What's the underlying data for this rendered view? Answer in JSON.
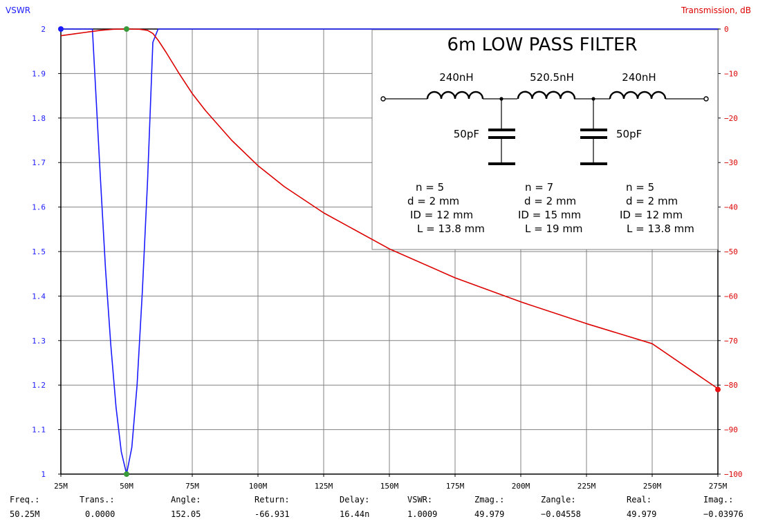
{
  "chart_data": {
    "type": "line",
    "title": "",
    "xlabel": "",
    "xlim": [
      25,
      275
    ],
    "x_ticks": [
      "25M",
      "50M",
      "75M",
      "100M",
      "125M",
      "150M",
      "175M",
      "200M",
      "225M",
      "250M",
      "275M"
    ],
    "ylabel_left": "VSWR",
    "ylim_left": [
      1,
      2
    ],
    "y_ticks_left": [
      "1",
      "1.1",
      "1.2",
      "1.3",
      "1.4",
      "1.5",
      "1.6",
      "1.7",
      "1.8",
      "1.9",
      "2"
    ],
    "ylabel_right": "Transmission, dB",
    "ylim_right": [
      -100,
      0
    ],
    "y_ticks_right": [
      "0",
      "−10",
      "−20",
      "−30",
      "−40",
      "−50",
      "−60",
      "−70",
      "−80",
      "−90",
      "−100"
    ],
    "grid": true,
    "series": [
      {
        "axis": "left",
        "color": "#1a1aff",
        "x": [
          25,
          37,
          40,
          42,
          44,
          46,
          48,
          50,
          52,
          54,
          56,
          58,
          60,
          62,
          275
        ],
        "y": [
          2,
          2,
          1.67,
          1.46,
          1.29,
          1.15,
          1.05,
          1.0,
          1.06,
          1.2,
          1.41,
          1.66,
          1.97,
          2,
          2
        ]
      },
      {
        "axis": "right",
        "color": "#dd0000",
        "x": [
          25,
          30,
          35,
          40,
          45,
          50,
          55,
          58,
          60,
          62,
          65,
          70,
          75,
          80,
          90,
          100,
          110,
          125,
          150,
          175,
          200,
          225,
          250,
          275
        ],
        "y": [
          -1.5,
          -1.1,
          -0.7,
          -0.3,
          -0.05,
          0,
          -0.05,
          -0.3,
          -1.0,
          -2.5,
          -5.2,
          -10,
          -14.5,
          -18.3,
          -25,
          -30.7,
          -35.4,
          -41.3,
          -49.4,
          -55.9,
          -61.3,
          -66.2,
          -70.7,
          -80.8
        ]
      }
    ],
    "markers": [
      {
        "axis": "left",
        "x": 25,
        "y": 2,
        "color": "#1a1aff"
      },
      {
        "axis": "left",
        "x": 50,
        "y": 2,
        "color": "#3a9a3a"
      },
      {
        "axis": "left",
        "x": 50,
        "y": 1,
        "color": "#3a9a3a"
      },
      {
        "axis": "right",
        "x": 275,
        "y": -81,
        "color": "#ee1111"
      }
    ]
  },
  "inset": {
    "title": "6m LOW PASS FILTER",
    "inductors": [
      {
        "label": "240nH",
        "n": "n = 5",
        "d": "d = 2 mm",
        "id": "ID = 12 mm",
        "l": "L = 13.8 mm"
      },
      {
        "label": "520.5nH",
        "n": "n = 7",
        "d": "d = 2 mm",
        "id": "ID = 15 mm",
        "l": "L = 19 mm"
      },
      {
        "label": "240nH",
        "n": "n = 5",
        "d": "d = 2 mm",
        "id": "ID = 12 mm",
        "l": "L = 13.8 mm"
      }
    ],
    "capacitors": [
      "50pF",
      "50pF"
    ]
  },
  "readout": [
    {
      "label": "Freq.:",
      "value": "50.25M"
    },
    {
      "label": "Trans.:",
      "value": "0.0000"
    },
    {
      "label": "Angle:",
      "value": "152.05"
    },
    {
      "label": "Return:",
      "value": "-66.931"
    },
    {
      "label": "Delay:",
      "value": "16.44n"
    },
    {
      "label": "VSWR:",
      "value": "1.0009"
    },
    {
      "label": "Zmag.:",
      "value": "49.979"
    },
    {
      "label": "Zangle:",
      "value": "−0.04558"
    },
    {
      "label": "Real:",
      "value": "49.979"
    },
    {
      "label": "Imag.:",
      "value": "−0.03976"
    }
  ],
  "colors": {
    "left_axis": "#1a1aff",
    "right_axis": "#dd0000",
    "grid": "#808080"
  }
}
